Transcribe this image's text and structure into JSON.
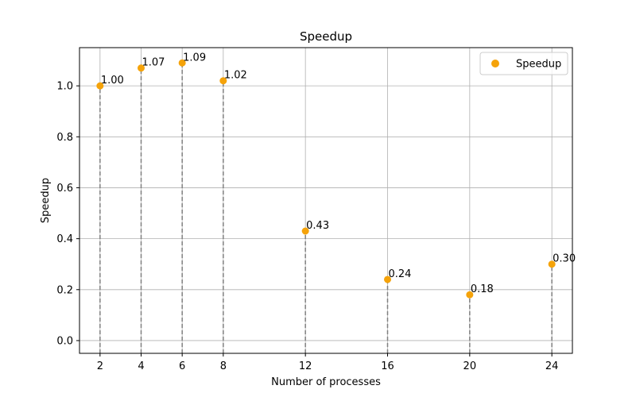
{
  "chart_data": {
    "type": "scatter",
    "title": "Speedup",
    "xlabel": "Number of processes",
    "ylabel": "Speedup",
    "x": [
      2,
      4,
      6,
      8,
      12,
      16,
      20,
      24
    ],
    "series": [
      {
        "name": "Speedup",
        "values": [
          1.0,
          1.07,
          1.09,
          1.02,
          0.43,
          0.24,
          0.18,
          0.3
        ],
        "labels": [
          "1.00",
          "1.07",
          "1.09",
          "1.02",
          "0.43",
          "0.24",
          "0.18",
          "0.30"
        ],
        "color": "#f5a30a"
      }
    ],
    "xticks": [
      "2",
      "4",
      "6",
      "8",
      "12",
      "16",
      "20",
      "24"
    ],
    "yticks": [
      "0.0",
      "0.2",
      "0.4",
      "0.6",
      "0.8",
      "1.0"
    ],
    "xlim": [
      1,
      25
    ],
    "ylim": [
      -0.05,
      1.15
    ],
    "grid": true,
    "stems": {
      "style": "dashed",
      "color": "#808080"
    },
    "legend": {
      "position": "top-right",
      "entries": [
        "Speedup"
      ]
    }
  }
}
